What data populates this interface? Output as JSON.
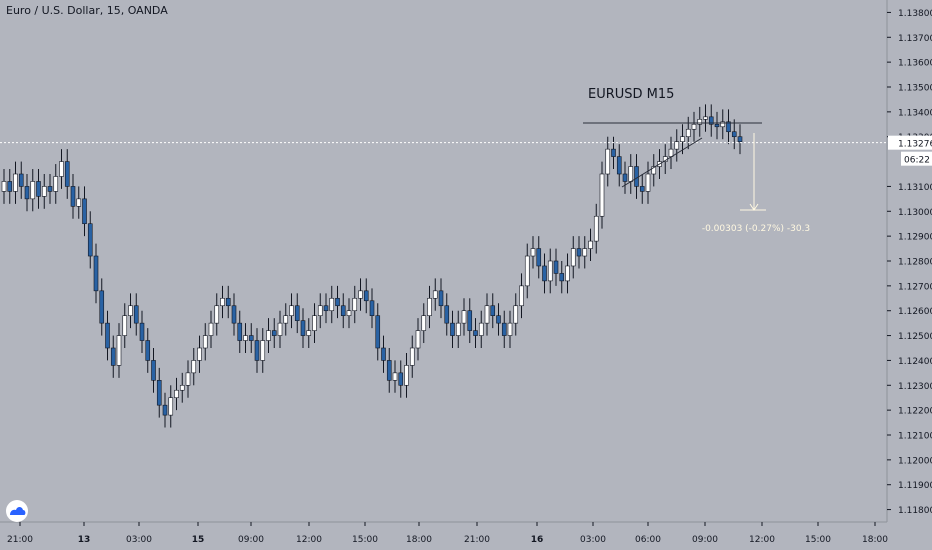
{
  "header": {
    "symbol_info": "Euro / U.S. Dollar, 15, OANDA"
  },
  "annotation": {
    "label": "EURUSD M15",
    "measure_text": "-0.00303 (-0.27%) -30.3"
  },
  "price_labels": {
    "last_price": "1.13276",
    "countdown": "06:22",
    "ticks": [
      "1.13800",
      "1.13700",
      "1.13600",
      "1.13500",
      "1.13400",
      "1.13300",
      "1.13100",
      "1.13000",
      "1.12900",
      "1.12800",
      "1.12700",
      "1.12600",
      "1.12500",
      "1.12400",
      "1.12300",
      "1.12200",
      "1.12100",
      "1.12000",
      "1.11900",
      "1.11800"
    ]
  },
  "time_labels": [
    "21:00",
    "13",
    "03:00",
    "15",
    "09:00",
    "12:00",
    "15:00",
    "18:00",
    "21:00",
    "16",
    "03:00",
    "06:00",
    "09:00",
    "12:00",
    "15:00",
    "18:00"
  ],
  "colors": {
    "background": "#b2b5be",
    "up_candle": "#ffffff",
    "down_candle": "#2962a4",
    "wick": "#131722",
    "price_line": "#ffffff",
    "measure": "#fff8e1",
    "annotation_line": "#2a2e39"
  },
  "icons": {
    "logo": "tradingview-cloud-icon"
  },
  "chart_data": {
    "type": "candlestick",
    "instrument": "EURUSD",
    "timeframe": "15",
    "ylim": [
      1.1175,
      1.1385
    ],
    "last_price": 1.13276,
    "close_series": [
      1.1312,
      1.1308,
      1.1315,
      1.131,
      1.1305,
      1.1312,
      1.1306,
      1.131,
      1.1308,
      1.1314,
      1.132,
      1.131,
      1.1302,
      1.1305,
      1.1295,
      1.1282,
      1.1268,
      1.1255,
      1.1245,
      1.1238,
      1.125,
      1.1258,
      1.1262,
      1.1255,
      1.1248,
      1.124,
      1.1232,
      1.1222,
      1.1218,
      1.1225,
      1.1228,
      1.123,
      1.1235,
      1.124,
      1.1245,
      1.125,
      1.1255,
      1.1262,
      1.1265,
      1.1262,
      1.1255,
      1.1248,
      1.125,
      1.1248,
      1.124,
      1.1248,
      1.1252,
      1.125,
      1.1255,
      1.1258,
      1.1262,
      1.1256,
      1.125,
      1.1252,
      1.1258,
      1.1262,
      1.126,
      1.1265,
      1.1262,
      1.1258,
      1.126,
      1.1265,
      1.1268,
      1.1264,
      1.1258,
      1.1245,
      1.124,
      1.1232,
      1.1235,
      1.123,
      1.1238,
      1.1245,
      1.1252,
      1.1258,
      1.1265,
      1.1268,
      1.1262,
      1.1255,
      1.125,
      1.1255,
      1.126,
      1.1252,
      1.125,
      1.1255,
      1.1262,
      1.1258,
      1.1255,
      1.125,
      1.1255,
      1.1262,
      1.127,
      1.1282,
      1.1285,
      1.1278,
      1.1272,
      1.128,
      1.1275,
      1.1272,
      1.1278,
      1.1285,
      1.1282,
      1.1285,
      1.1288,
      1.1298,
      1.1315,
      1.1325,
      1.1322,
      1.1315,
      1.1312,
      1.1318,
      1.131,
      1.1308,
      1.1315,
      1.1318,
      1.132,
      1.1322,
      1.1325,
      1.1328,
      1.133,
      1.1333,
      1.1335,
      1.1337,
      1.1338,
      1.1335,
      1.1334,
      1.1336,
      1.1332,
      1.133,
      1.1328
    ]
  }
}
